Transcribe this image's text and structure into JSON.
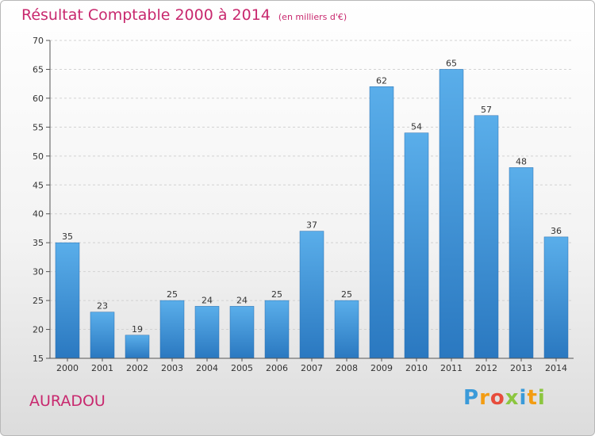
{
  "chart_data": {
    "type": "bar",
    "title": "Résultat Comptable 2000 à 2014",
    "subtitle": "(en milliers d'€)",
    "categories": [
      "2000",
      "2001",
      "2002",
      "2003",
      "2004",
      "2005",
      "2006",
      "2007",
      "2008",
      "2009",
      "2010",
      "2011",
      "2012",
      "2013",
      "2014"
    ],
    "values": [
      35,
      23,
      19,
      25,
      24,
      24,
      25,
      37,
      25,
      62,
      54,
      65,
      57,
      48,
      36
    ],
    "data_labels": [
      "35",
      "23",
      "19",
      "25",
      "24",
      "24",
      "25",
      "37",
      "25",
      "62",
      "54",
      "65",
      "57",
      "48",
      "36"
    ],
    "ylim": [
      15,
      70
    ],
    "yticks": [
      15,
      20,
      25,
      30,
      35,
      40,
      45,
      50,
      55,
      60,
      65,
      70
    ],
    "grid": true,
    "bar_color": "#3d8fd6"
  },
  "place_name": "AURADOU",
  "logo": {
    "letters": [
      "P",
      "r",
      "o",
      "x",
      "i",
      "t",
      "i"
    ],
    "colors": [
      "#3a9ad9",
      "#f39c12",
      "#e74c3c",
      "#8cc63f",
      "#3a9ad9",
      "#f39c12",
      "#8cc63f"
    ]
  }
}
